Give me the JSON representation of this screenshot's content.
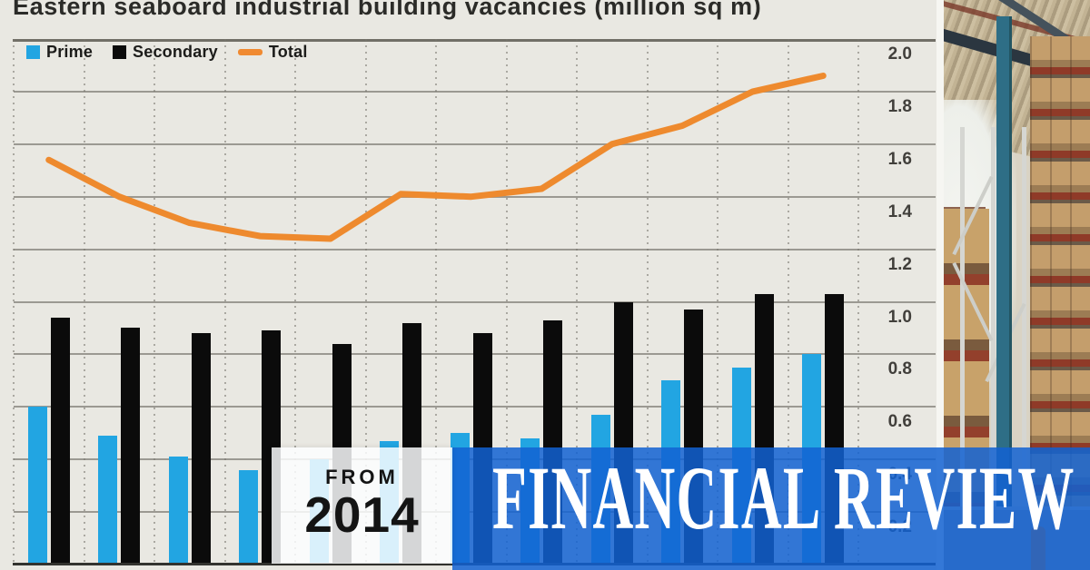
{
  "title": "Eastern seaboard industrial building vacancies (million sq m)",
  "legend": [
    {
      "label": "Prime",
      "color": "#22A5E2",
      "swatch": "square"
    },
    {
      "label": "Secondary",
      "color": "#0B0B0B",
      "swatch": "square"
    },
    {
      "label": "Total",
      "color": "#F08A31",
      "swatch": "dash"
    }
  ],
  "badge": {
    "line1": "FROM",
    "line2": "2014"
  },
  "masthead": {
    "text": "FINANCIAL REVIEW",
    "bg_color": "#1262D2"
  },
  "photo": {
    "description": "warehouse interior with pallet racking"
  },
  "colors": {
    "background": "#E9E8E2",
    "prime_bar": "#22A5E2",
    "secondary_bar": "#0B0B0B",
    "total_line": "#EE8A2E",
    "banner_blue": "#1262D2"
  },
  "chart_data": {
    "type": "bar",
    "subtype": "grouped bars with overlaid line",
    "title": "Eastern seaboard industrial building vacancies (million sq m)",
    "num_periods": 12,
    "x_tick_labels_visible": false,
    "series": [
      {
        "name": "Prime",
        "type": "bar",
        "color": "#22A5E2",
        "values": [
          0.6,
          0.49,
          0.41,
          0.36,
          0.4,
          0.47,
          0.5,
          0.48,
          0.57,
          0.7,
          0.75,
          0.8
        ]
      },
      {
        "name": "Secondary",
        "type": "bar",
        "color": "#0B0B0B",
        "values": [
          0.94,
          0.9,
          0.88,
          0.89,
          0.84,
          0.92,
          0.88,
          0.93,
          1.0,
          0.97,
          1.03,
          1.03
        ]
      },
      {
        "name": "Total",
        "type": "line",
        "color": "#EE8A2E",
        "values": [
          1.54,
          1.4,
          1.3,
          1.25,
          1.24,
          1.41,
          1.4,
          1.43,
          1.6,
          1.67,
          1.8,
          1.86
        ]
      }
    ],
    "ylim": [
      0,
      2.0
    ],
    "ytick_step": 0.2,
    "ytick_labels": [
      "2.0",
      "1.8",
      "1.6",
      "1.4",
      "1.2",
      "1.0",
      "0.8",
      "0.6",
      "0.4",
      "0.2"
    ],
    "yaxis_side": "right",
    "grid": {
      "horizontal": "solid",
      "vertical": "dotted"
    },
    "legend_position": "top-left inside plot"
  }
}
